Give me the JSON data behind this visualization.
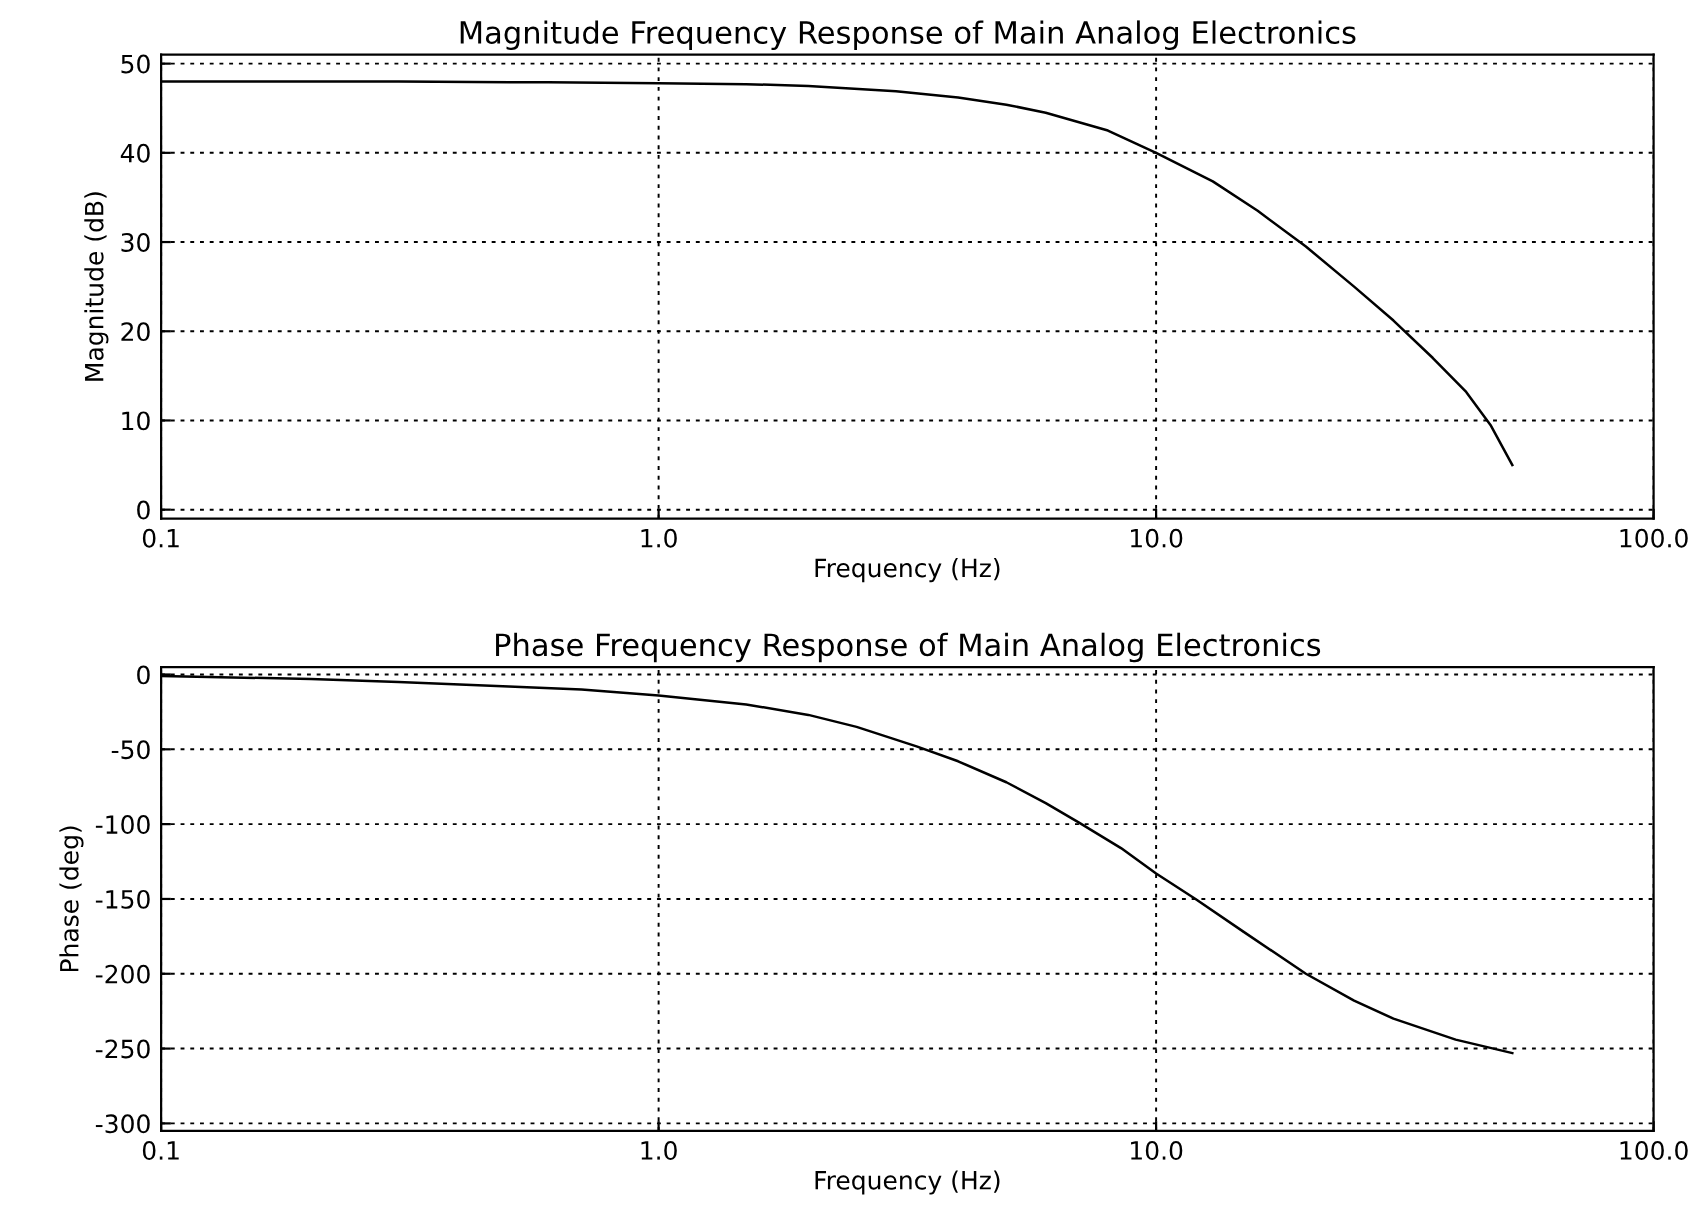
{
  "chart_data": [
    {
      "type": "line",
      "title": "Magnitude Frequency Response of Main Analog Electronics",
      "xlabel": "Frequency (Hz)",
      "ylabel": "Magnitude (dB)",
      "log": "x",
      "grid": true,
      "xlim": [
        0.1,
        100
      ],
      "ylim": [
        -1,
        51
      ],
      "xticks": [
        {
          "value": 0.1,
          "label": "0.1"
        },
        {
          "value": 1,
          "label": "1.0"
        },
        {
          "value": 10,
          "label": "10.0"
        },
        {
          "value": 100,
          "label": "100.0"
        }
      ],
      "yticks": [
        0,
        10,
        20,
        30,
        40,
        50
      ],
      "series": [
        {
          "color": "#000000",
          "x": [
            0.1,
            0.3,
            0.6,
            1,
            1.5,
            2,
            3,
            4,
            5,
            6,
            8,
            10,
            13,
            16,
            20,
            25,
            30,
            36,
            42,
            47,
            52
          ],
          "values": [
            48,
            48,
            47.9,
            47.8,
            47.7,
            47.5,
            46.9,
            46.2,
            45.4,
            44.5,
            42.5,
            40,
            36.8,
            33.5,
            29.5,
            25,
            21.2,
            17,
            13.2,
            9.5,
            5
          ]
        }
      ]
    },
    {
      "type": "line",
      "title": "Phase Frequency Response of Main Analog Electronics",
      "xlabel": "Frequency (Hz)",
      "ylabel": "Phase (deg)",
      "log": "x",
      "grid": true,
      "xlim": [
        0.1,
        100
      ],
      "ylim": [
        -305,
        5
      ],
      "xticks": [
        {
          "value": 0.1,
          "label": "0.1"
        },
        {
          "value": 1,
          "label": "1.0"
        },
        {
          "value": 10,
          "label": "10.0"
        },
        {
          "value": 100,
          "label": "100.0"
        }
      ],
      "yticks": [
        0,
        -50,
        -100,
        -150,
        -200,
        -250,
        -300
      ],
      "series": [
        {
          "color": "#000000",
          "x": [
            0.1,
            0.2,
            0.3,
            0.5,
            0.7,
            1,
            1.5,
            2,
            2.5,
            3.3,
            4,
            5,
            6,
            7,
            8.5,
            10,
            12,
            15,
            20,
            25,
            30,
            40,
            52
          ],
          "values": [
            -1,
            -3,
            -5,
            -8,
            -10,
            -14,
            -20,
            -27,
            -35,
            -48,
            -58,
            -72,
            -86,
            -99,
            -116,
            -133,
            -150,
            -172,
            -200,
            -218,
            -230,
            -244,
            -253
          ]
        }
      ]
    }
  ]
}
